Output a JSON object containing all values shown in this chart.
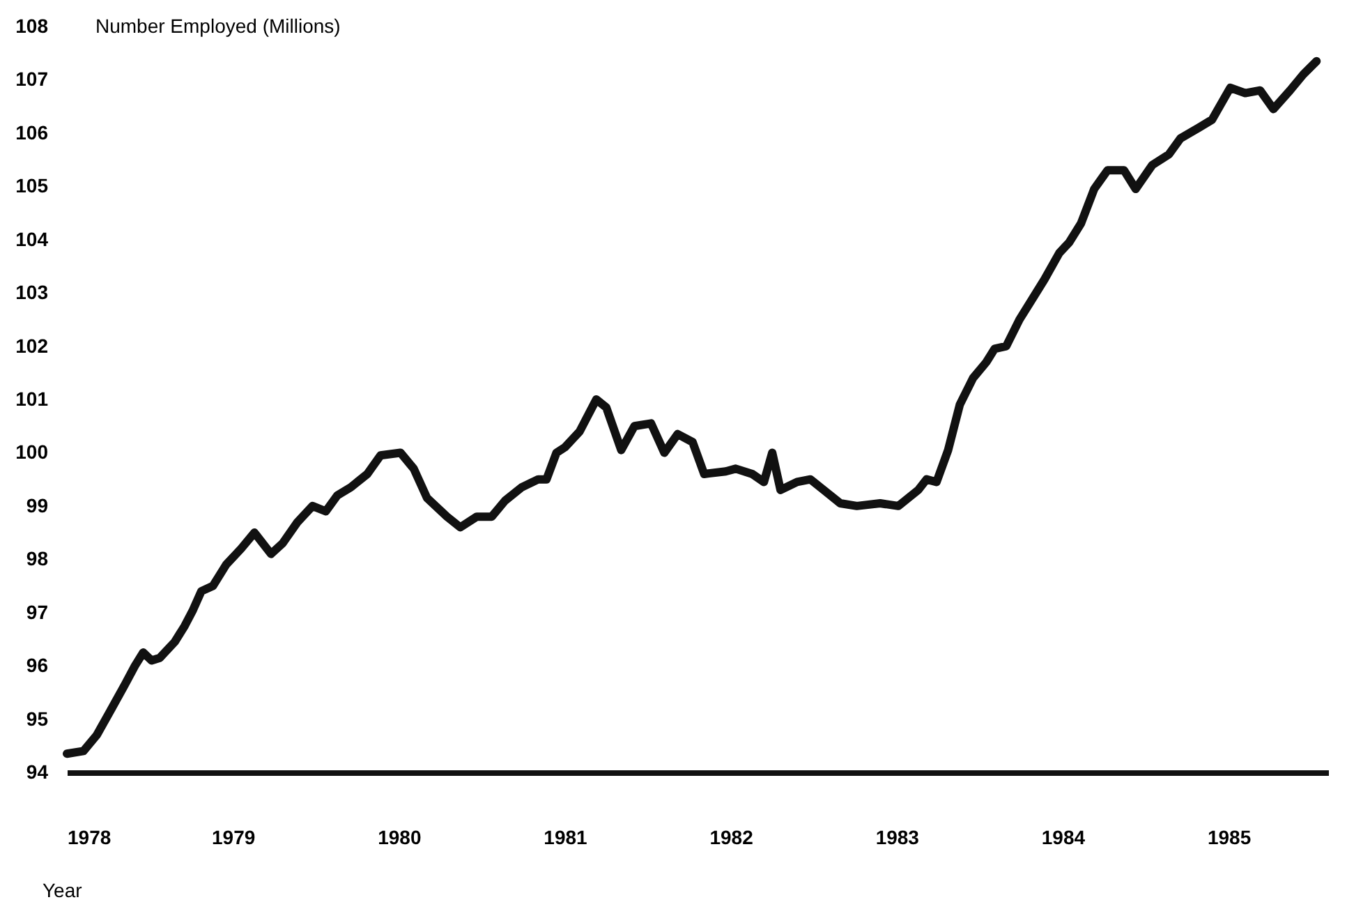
{
  "chart_data": {
    "type": "line",
    "ylabel": "Number Employed (Millions)",
    "xlabel": "Year",
    "x": [
      1978.0,
      1978.1,
      1978.18,
      1978.27,
      1978.35,
      1978.41,
      1978.46,
      1978.51,
      1978.56,
      1978.65,
      1978.71,
      1978.76,
      1978.81,
      1978.88,
      1978.96,
      1979.05,
      1979.13,
      1979.23,
      1979.3,
      1979.39,
      1979.48,
      1979.56,
      1979.63,
      1979.71,
      1979.81,
      1979.89,
      1980.01,
      1980.09,
      1980.17,
      1980.29,
      1980.37,
      1980.47,
      1980.56,
      1980.64,
      1980.74,
      1980.84,
      1980.89,
      1980.95,
      1981.0,
      1981.09,
      1981.19,
      1981.25,
      1981.34,
      1981.42,
      1981.52,
      1981.6,
      1981.68,
      1981.77,
      1981.84,
      1981.97,
      1982.03,
      1982.13,
      1982.2,
      1982.25,
      1982.3,
      1982.4,
      1982.48,
      1982.56,
      1982.66,
      1982.76,
      1982.9,
      1983.01,
      1983.13,
      1983.18,
      1983.24,
      1983.31,
      1983.38,
      1983.46,
      1983.54,
      1983.59,
      1983.66,
      1983.74,
      1983.83,
      1983.89,
      1983.98,
      1984.04,
      1984.11,
      1984.19,
      1984.27,
      1984.37,
      1984.44,
      1984.54,
      1984.64,
      1984.71,
      1984.82,
      1984.9,
      1985.01,
      1985.1,
      1985.19,
      1985.27,
      1985.37,
      1985.45,
      1985.53
    ],
    "values": [
      94.35,
      94.4,
      94.7,
      95.2,
      95.65,
      96.0,
      96.25,
      96.1,
      96.15,
      96.45,
      96.75,
      97.05,
      97.4,
      97.5,
      97.9,
      98.2,
      98.5,
      98.1,
      98.3,
      98.7,
      99.0,
      98.9,
      99.2,
      99.35,
      99.6,
      99.95,
      100.0,
      99.7,
      99.15,
      98.8,
      98.6,
      98.8,
      98.8,
      99.1,
      99.35,
      99.5,
      99.5,
      100.0,
      100.1,
      100.4,
      101.0,
      100.85,
      100.05,
      100.5,
      100.55,
      100.0,
      100.35,
      100.2,
      99.6,
      99.65,
      99.7,
      99.6,
      99.45,
      100.0,
      99.3,
      99.45,
      99.5,
      99.3,
      99.05,
      99.0,
      99.05,
      99.0,
      99.3,
      99.5,
      99.45,
      100.05,
      100.9,
      101.4,
      101.7,
      101.95,
      102.0,
      102.5,
      102.95,
      103.25,
      103.75,
      103.95,
      104.3,
      104.95,
      105.3,
      105.3,
      104.95,
      105.4,
      105.6,
      105.9,
      106.1,
      106.25,
      106.85,
      106.75,
      106.8,
      106.45,
      106.8,
      107.1,
      107.35
    ],
    "color": "#111111",
    "marker": "none",
    "line_style": "solid",
    "xlim": [
      1978,
      1985.6
    ],
    "xticks": [
      1978,
      1979,
      1980,
      1981,
      1982,
      1983,
      1984,
      1985
    ],
    "ylim": [
      94,
      108
    ],
    "yticks": [
      94,
      95,
      96,
      97,
      98,
      99,
      100,
      101,
      102,
      103,
      104,
      105,
      106,
      107,
      108
    ]
  }
}
